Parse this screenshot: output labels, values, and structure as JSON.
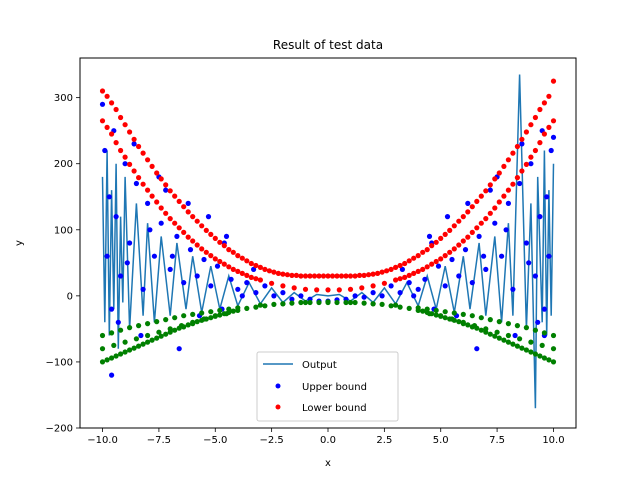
{
  "chart_data": {
    "type": "scatter",
    "title": "Result of test data",
    "xlabel": "x",
    "ylabel": "y",
    "xlim": [
      -11,
      11
    ],
    "ylim": [
      -200,
      360
    ],
    "x_ticks": [
      -10.0,
      -7.5,
      -5.0,
      -2.5,
      0.0,
      2.5,
      5.0,
      7.5,
      10.0
    ],
    "x_tick_labels": [
      "−10.0",
      "−7.5",
      "−5.0",
      "−2.5",
      "0.0",
      "2.5",
      "5.0",
      "7.5",
      "10.0"
    ],
    "y_ticks": [
      -200,
      -100,
      0,
      100,
      200,
      300
    ],
    "y_tick_labels": [
      "−200",
      "−100",
      "0",
      "100",
      "200",
      "300"
    ],
    "grid": false,
    "legend_position": "lower-center",
    "series": [
      {
        "name": "Output",
        "kind": "line",
        "color": "#1f77b4",
        "x": [
          -10.0,
          -9.9,
          -9.8,
          -9.7,
          -9.6,
          -9.5,
          -9.4,
          -9.3,
          -9.2,
          -9.1,
          -9.0,
          -8.8,
          -8.5,
          -8.2,
          -8.0,
          -7.7,
          -7.4,
          -7.0,
          -6.7,
          -6.3,
          -6.0,
          -5.6,
          -5.2,
          -4.8,
          -4.4,
          -4.0,
          -3.5,
          -3.0,
          -2.5,
          -2.0,
          -1.5,
          -1.0,
          -0.5,
          0.0,
          0.5,
          1.0,
          1.5,
          2.0,
          2.5,
          3.0,
          3.5,
          4.0,
          4.4,
          4.8,
          5.2,
          5.6,
          6.0,
          6.3,
          6.7,
          7.0,
          7.4,
          7.7,
          8.0,
          8.2,
          8.5,
          8.8,
          9.0,
          9.2,
          9.3,
          9.5,
          9.6,
          9.7,
          9.8,
          9.9,
          10.0
        ],
        "y": [
          180,
          -40,
          220,
          -60,
          160,
          -20,
          200,
          -80,
          120,
          -10,
          180,
          -50,
          140,
          -30,
          110,
          -40,
          90,
          -30,
          80,
          -20,
          60,
          -25,
          45,
          -20,
          30,
          -15,
          20,
          -12,
          12,
          -10,
          5,
          -8,
          2,
          0,
          2,
          -8,
          5,
          -10,
          12,
          -12,
          20,
          -15,
          30,
          -20,
          45,
          -25,
          60,
          -20,
          80,
          -30,
          90,
          -40,
          110,
          -30,
          335,
          -50,
          140,
          -170,
          180,
          -40,
          220,
          -60,
          160,
          -30,
          200
        ]
      },
      {
        "name": "Upper bound",
        "kind": "scatter",
        "color": "#0000ff",
        "x": [
          -10.0,
          -9.9,
          -9.8,
          -9.7,
          -9.6,
          -9.5,
          -9.4,
          -9.2,
          -9.0,
          -8.8,
          -8.5,
          -8.2,
          -8.0,
          -7.7,
          -7.4,
          -7.2,
          -7.0,
          -6.7,
          -6.4,
          -6.1,
          -5.8,
          -5.5,
          -5.2,
          -4.9,
          -4.6,
          -4.3,
          -4.0,
          -3.6,
          -3.2,
          -2.8,
          -2.4,
          -2.0,
          -1.6,
          -1.2,
          -0.8,
          -0.4,
          0.0,
          0.4,
          0.8,
          1.2,
          1.6,
          2.0,
          2.4,
          2.8,
          3.2,
          3.6,
          4.0,
          4.3,
          4.6,
          4.9,
          5.2,
          5.5,
          5.8,
          6.1,
          6.4,
          6.7,
          7.0,
          7.2,
          7.4,
          7.7,
          8.0,
          8.2,
          8.5,
          8.8,
          9.0,
          9.2,
          9.4,
          9.5,
          9.6,
          9.7,
          9.8,
          9.9,
          10.0,
          -9.6,
          -9.3,
          -8.9,
          -8.6,
          -8.3,
          -7.9,
          -7.5,
          -6.9,
          -6.6,
          -6.2,
          -5.7,
          -5.3,
          -4.7,
          -4.5,
          -3.8,
          -3.3,
          3.3,
          3.8,
          4.5,
          4.7,
          5.3,
          5.7,
          6.2,
          6.6,
          6.9,
          7.5,
          7.9,
          8.3,
          8.6,
          8.9,
          9.3,
          9.6
        ],
        "y": [
          290,
          220,
          60,
          150,
          -20,
          250,
          120,
          30,
          200,
          80,
          170,
          10,
          140,
          60,
          110,
          160,
          40,
          90,
          20,
          70,
          30,
          55,
          15,
          45,
          80,
          25,
          10,
          20,
          5,
          15,
          0,
          5,
          -5,
          0,
          -5,
          -8,
          -8,
          -6,
          -5,
          0,
          -2,
          5,
          0,
          15,
          5,
          20,
          10,
          25,
          80,
          45,
          15,
          55,
          30,
          70,
          20,
          90,
          40,
          160,
          110,
          60,
          140,
          10,
          170,
          80,
          200,
          30,
          120,
          250,
          -20,
          150,
          60,
          220,
          240,
          -120,
          -40,
          50,
          230,
          -60,
          100,
          180,
          60,
          -80,
          140,
          -30,
          120,
          -20,
          90,
          0,
          40,
          40,
          0,
          90,
          -20,
          120,
          -30,
          140,
          -80,
          60,
          180,
          100,
          -60,
          230,
          50,
          -40,
          -60
        ]
      },
      {
        "name": "Lower bound",
        "kind": "scatter",
        "color": "#ff0000",
        "x": [
          -10.0,
          -9.8,
          -9.6,
          -9.4,
          -9.2,
          -9.0,
          -8.8,
          -8.6,
          -8.4,
          -8.2,
          -8.0,
          -7.8,
          -7.6,
          -7.4,
          -7.2,
          -7.0,
          -6.8,
          -6.6,
          -6.4,
          -6.2,
          -6.0,
          -5.8,
          -5.6,
          -5.4,
          -5.2,
          -5.0,
          -4.8,
          -4.6,
          -4.4,
          -4.2,
          -4.0,
          -3.8,
          -3.6,
          -3.4,
          -3.2,
          -3.0,
          -2.8,
          -2.6,
          -2.4,
          -2.2,
          -2.0,
          -1.8,
          -1.6,
          -1.4,
          -1.2,
          -1.0,
          -0.8,
          -0.6,
          -0.4,
          -0.2,
          0.0,
          0.2,
          0.4,
          0.6,
          0.8,
          1.0,
          1.2,
          1.4,
          1.6,
          1.8,
          2.0,
          2.2,
          2.4,
          2.6,
          2.8,
          3.0,
          3.2,
          3.4,
          3.6,
          3.8,
          4.0,
          4.2,
          4.4,
          4.6,
          4.8,
          5.0,
          5.2,
          5.4,
          5.6,
          5.8,
          6.0,
          6.2,
          6.4,
          6.6,
          6.8,
          7.0,
          7.2,
          7.4,
          7.6,
          7.8,
          8.0,
          8.2,
          8.4,
          8.6,
          8.8,
          9.0,
          9.2,
          9.4,
          9.6,
          9.8,
          10.0,
          -10.0,
          -9.8,
          -9.6,
          -9.4,
          -9.2,
          -9.0,
          -8.8,
          -8.6,
          -8.4,
          -8.2,
          -8.0,
          -7.8,
          -7.6,
          -7.4,
          -7.2,
          -7.0,
          -6.8,
          -6.6,
          -6.4,
          -6.2,
          -6.0,
          -5.8,
          -5.6,
          -5.4,
          -5.2,
          -5.0,
          -4.8,
          -4.6,
          -4.4,
          -4.2,
          -4.0,
          -3.8,
          -3.6,
          -3.4,
          -3.2,
          -3.0,
          -2.5,
          -2.0,
          -1.5,
          -1.0,
          -0.5,
          0.0,
          0.5,
          1.0,
          1.5,
          2.0,
          2.5,
          3.0,
          3.2,
          3.4,
          3.6,
          3.8,
          4.0,
          4.2,
          4.4,
          4.6,
          4.8,
          5.0,
          5.2,
          5.4,
          5.6,
          5.8,
          6.0,
          6.2,
          6.4,
          6.6,
          6.8,
          7.0,
          7.2,
          7.4,
          7.6,
          7.8,
          8.0,
          8.2,
          8.4,
          8.6,
          8.8,
          9.0,
          9.2,
          9.4,
          9.6,
          9.8,
          10.0
        ],
        "y": [
          310,
          302,
          292,
          282,
          270,
          259,
          248,
          237,
          226,
          216,
          206,
          196,
          186,
          177,
          168,
          159,
          151,
          143,
          135,
          127,
          120,
          113,
          106,
          99,
          93,
          87,
          81,
          76,
          70,
          66,
          61,
          57,
          53,
          49,
          46,
          43,
          40,
          38,
          36,
          34,
          33,
          32,
          31,
          31,
          30,
          30,
          30,
          30,
          30,
          30,
          30,
          30,
          30,
          30,
          30,
          30,
          30,
          31,
          31,
          32,
          33,
          34,
          36,
          38,
          40,
          43,
          46,
          49,
          53,
          57,
          61,
          66,
          70,
          76,
          81,
          87,
          93,
          99,
          106,
          113,
          120,
          127,
          135,
          143,
          151,
          159,
          168,
          177,
          186,
          196,
          206,
          216,
          226,
          237,
          248,
          259,
          270,
          282,
          292,
          302,
          325,
          265,
          255,
          245,
          232,
          220,
          210,
          199,
          189,
          179,
          169,
          160,
          151,
          142,
          133,
          125,
          117,
          110,
          103,
          96,
          89,
          83,
          77,
          71,
          66,
          61,
          56,
          52,
          48,
          44,
          40,
          37,
          34,
          31,
          28,
          26,
          24,
          19,
          15,
          12,
          10,
          9,
          9,
          9,
          10,
          12,
          15,
          19,
          24,
          26,
          28,
          31,
          34,
          37,
          40,
          44,
          48,
          52,
          56,
          61,
          66,
          71,
          77,
          83,
          89,
          96,
          103,
          110,
          117,
          125,
          133,
          142,
          151,
          160,
          169,
          179,
          189,
          199,
          210,
          220,
          232,
          245,
          255,
          265
        ]
      },
      {
        "kind": "scatter",
        "color": "#008000",
        "x": [
          -10.0,
          -9.8,
          -9.6,
          -9.4,
          -9.2,
          -9.0,
          -8.8,
          -8.6,
          -8.4,
          -8.2,
          -8.0,
          -7.8,
          -7.6,
          -7.4,
          -7.2,
          -7.0,
          -6.8,
          -6.6,
          -6.4,
          -6.2,
          -6.0,
          -5.8,
          -5.6,
          -5.4,
          -5.2,
          -5.0,
          -4.8,
          -4.6,
          -4.4,
          -4.2,
          -4.0,
          -3.6,
          -3.2,
          -2.8,
          -2.4,
          -2.0,
          -1.6,
          -1.2,
          -0.8,
          -0.4,
          0.0,
          0.4,
          0.8,
          1.2,
          1.6,
          2.0,
          2.4,
          2.8,
          3.2,
          3.6,
          4.0,
          4.2,
          4.4,
          4.6,
          4.8,
          5.0,
          5.2,
          5.4,
          5.6,
          5.8,
          6.0,
          6.2,
          6.4,
          6.6,
          6.8,
          7.0,
          7.2,
          7.4,
          7.6,
          7.8,
          8.0,
          8.2,
          8.4,
          8.6,
          8.8,
          9.0,
          9.2,
          9.4,
          9.6,
          9.8,
          10.0,
          -10.0,
          -9.6,
          -9.2,
          -8.8,
          -8.4,
          -8.0,
          -7.6,
          -7.2,
          -6.8,
          -6.4,
          -6.0,
          -5.6,
          -5.2,
          -4.8,
          -4.4,
          -4.0,
          -3.0,
          -2.0,
          -1.0,
          0.0,
          1.0,
          2.0,
          3.0,
          4.0,
          4.4,
          4.8,
          5.2,
          5.6,
          6.0,
          6.4,
          6.8,
          7.2,
          7.6,
          8.0,
          8.4,
          8.8,
          9.2,
          9.6,
          10.0,
          -10.0,
          -9.5,
          -9.0,
          -8.5,
          -8.0,
          -7.5,
          -7.0,
          -6.5,
          -6.0,
          -5.5,
          -5.0,
          -4.5,
          4.5,
          5.0,
          5.5,
          6.0,
          6.5,
          7.0,
          7.5,
          8.0,
          8.5,
          9.0,
          9.5,
          10.0
        ],
        "y": [
          -100,
          -97,
          -94,
          -91,
          -88,
          -85,
          -82,
          -79,
          -76,
          -73,
          -70,
          -67,
          -64,
          -61,
          -58,
          -55,
          -52,
          -49,
          -47,
          -44,
          -42,
          -39,
          -37,
          -35,
          -33,
          -31,
          -29,
          -27,
          -25,
          -23,
          -22,
          -19,
          -17,
          -15,
          -13,
          -12,
          -11,
          -10,
          -10,
          -10,
          -10,
          -10,
          -10,
          -10,
          -11,
          -12,
          -13,
          -15,
          -17,
          -19,
          -22,
          -23,
          -25,
          -27,
          -29,
          -31,
          -33,
          -35,
          -37,
          -39,
          -42,
          -44,
          -47,
          -49,
          -52,
          -55,
          -58,
          -61,
          -64,
          -67,
          -70,
          -73,
          -76,
          -79,
          -82,
          -85,
          -88,
          -91,
          -94,
          -97,
          -100,
          -60,
          -56,
          -52,
          -48,
          -45,
          -42,
          -39,
          -36,
          -33,
          -30,
          -28,
          -26,
          -24,
          -22,
          -20,
          -18,
          -14,
          -12,
          -10,
          -9,
          -10,
          -12,
          -14,
          -18,
          -20,
          -22,
          -24,
          -26,
          -28,
          -30,
          -33,
          -36,
          -39,
          -42,
          -45,
          -48,
          -52,
          -56,
          -60,
          -80,
          -75,
          -70,
          -65,
          -60,
          -55,
          -50,
          -45,
          -40,
          -35,
          -30,
          -27,
          -27,
          -30,
          -35,
          -40,
          -45,
          -50,
          -55,
          -60,
          -65,
          -70,
          -75,
          -80
        ]
      }
    ]
  }
}
